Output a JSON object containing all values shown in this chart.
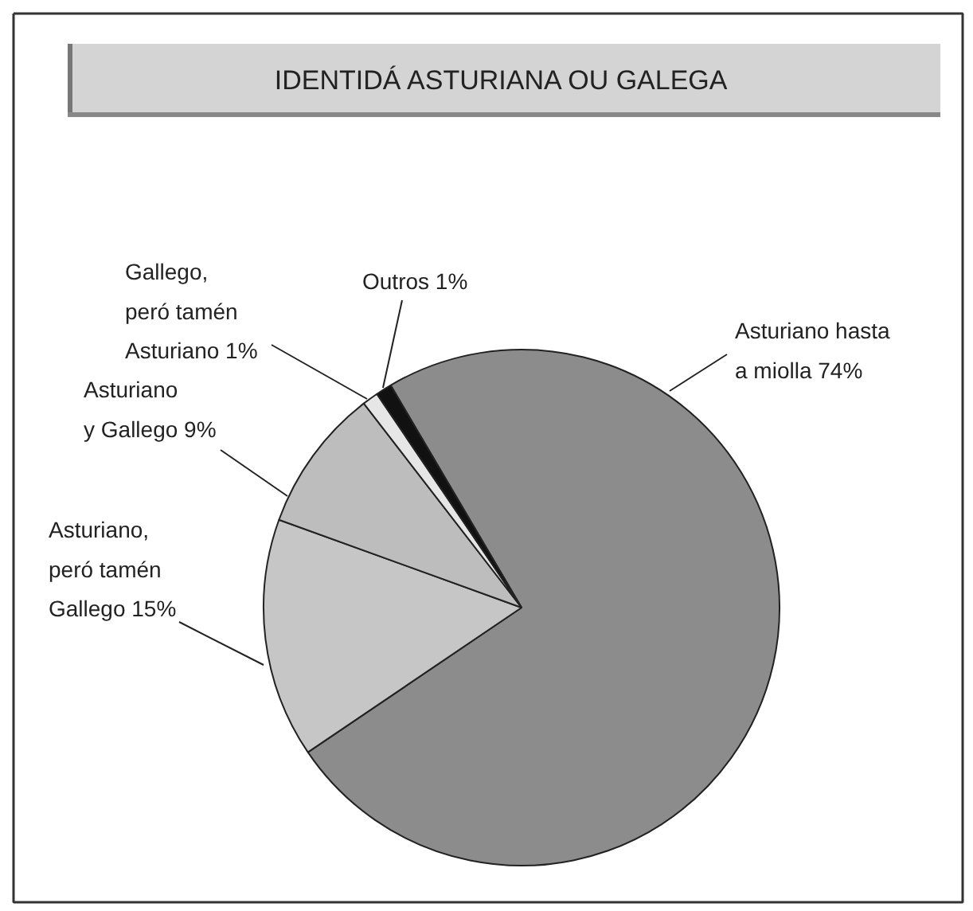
{
  "chart_data": {
    "type": "pie",
    "title": "IDENTIDÁ ASTURIANA OU GALEGA",
    "categories": [
      "Asturiano  hasta\na miolla",
      "Asturiano,\nperó tamén\nGallego",
      "Asturiano\ny Gallego",
      "Gallego,\nperó tamén\nAsturiano",
      "Outros"
    ],
    "values": [
      74,
      15,
      9,
      1,
      1
    ],
    "value_labels": [
      "74%",
      "15%",
      "9%",
      "1%",
      "1%"
    ],
    "colors": [
      "#8c8c8c",
      "#c6c6c6",
      "#bdbdbd",
      "#e6e6e6",
      "#111111"
    ]
  }
}
